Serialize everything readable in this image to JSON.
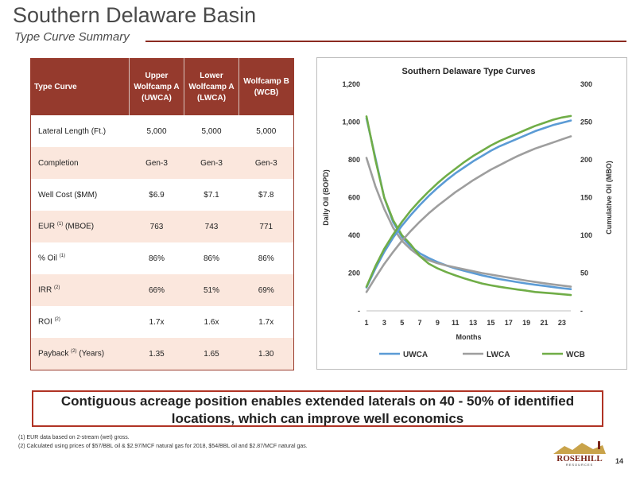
{
  "header": {
    "title": "Southern Delaware Basin",
    "subtitle": "Type Curve Summary"
  },
  "table": {
    "columns": [
      "Type Curve",
      "Upper Wolfcamp A (UWCA)",
      "Lower Wolfcamp A (LWCA)",
      "Wolfcamp B (WCB)"
    ],
    "rows": [
      {
        "label": "Lateral Length (Ft.)",
        "sup": "",
        "suffix": "",
        "values": [
          "5,000",
          "5,000",
          "5,000"
        ]
      },
      {
        "label": "Completion",
        "sup": "",
        "suffix": "",
        "values": [
          "Gen-3",
          "Gen-3",
          "Gen-3"
        ]
      },
      {
        "label": "Well Cost ($MM)",
        "sup": "",
        "suffix": "",
        "values": [
          "$6.9",
          "$7.1",
          "$7.8"
        ]
      },
      {
        "label": "EUR",
        "sup": "(1)",
        "suffix": "(MBOE)",
        "values": [
          "763",
          "743",
          "771"
        ]
      },
      {
        "label": "% Oil",
        "sup": "(1)",
        "suffix": "",
        "values": [
          "86%",
          "86%",
          "86%"
        ]
      },
      {
        "label": "IRR",
        "sup": "(2)",
        "suffix": "",
        "values": [
          "66%",
          "51%",
          "69%"
        ]
      },
      {
        "label": "ROI",
        "sup": "(2)",
        "suffix": "",
        "values": [
          "1.7x",
          "1.6x",
          "1.7x"
        ]
      },
      {
        "label": "Payback",
        "sup": "(2)",
        "suffix": "(Years)",
        "values": [
          "1.35",
          "1.65",
          "1.30"
        ]
      }
    ]
  },
  "chart_data": {
    "type": "line",
    "title": "Southern Delaware Type Curves",
    "xlabel": "Months",
    "ylabel": "Daily Oil (BOPD)",
    "y2label": "Cumulative Oil (MBO)",
    "xlim": [
      1,
      24
    ],
    "ylim": [
      0,
      1200
    ],
    "y2lim": [
      0,
      300
    ],
    "x_ticks": [
      "1",
      "3",
      "5",
      "7",
      "9",
      "11",
      "13",
      "15",
      "17",
      "19",
      "21",
      "23"
    ],
    "y_ticks": [
      "-",
      "200",
      "400",
      "600",
      "800",
      "1,000",
      "1,200"
    ],
    "y2_ticks": [
      "-",
      "50",
      "100",
      "150",
      "200",
      "250",
      "300"
    ],
    "x": [
      1,
      2,
      3,
      4,
      5,
      6,
      7,
      8,
      9,
      10,
      11,
      12,
      13,
      14,
      15,
      16,
      17,
      18,
      19,
      20,
      21,
      22,
      23,
      24
    ],
    "grid": false,
    "legend_position": "bottom",
    "series": [
      {
        "name": "UWCA",
        "axis": "left",
        "color": "#5b9bd5",
        "values": [
          1020,
          810,
          600,
          470,
          390,
          340,
          305,
          280,
          258,
          240,
          225,
          212,
          200,
          188,
          178,
          168,
          160,
          152,
          145,
          138,
          132,
          126,
          120,
          115
        ]
      },
      {
        "name": "LWCA",
        "axis": "left",
        "color": "#9e9e9e",
        "values": [
          810,
          660,
          540,
          440,
          370,
          325,
          290,
          268,
          252,
          240,
          230,
          220,
          210,
          200,
          192,
          184,
          176,
          168,
          160,
          153,
          146,
          140,
          134,
          128
        ]
      },
      {
        "name": "WCB",
        "axis": "left",
        "color": "#70ad47",
        "values": [
          1030,
          800,
          600,
          480,
          400,
          350,
          290,
          250,
          225,
          205,
          188,
          172,
          158,
          145,
          135,
          127,
          120,
          113,
          107,
          100,
          96,
          92,
          88,
          84
        ]
      },
      {
        "name": "",
        "axis": "right",
        "color": "#5b9bd5",
        "values": [
          31,
          56,
          78,
          97,
          113,
          127,
          140,
          152,
          163,
          173,
          182,
          190,
          198,
          205,
          212,
          218,
          223,
          228,
          233,
          238,
          242,
          246,
          249,
          252
        ]
      },
      {
        "name": "",
        "axis": "right",
        "color": "#9e9e9e",
        "values": [
          25,
          44,
          62,
          78,
          93,
          106,
          118,
          129,
          139,
          148,
          157,
          165,
          173,
          180,
          187,
          193,
          199,
          205,
          210,
          215,
          219,
          223,
          227,
          231
        ]
      },
      {
        "name": "",
        "axis": "right",
        "color": "#70ad47",
        "values": [
          32,
          59,
          82,
          101,
          118,
          133,
          146,
          158,
          169,
          179,
          188,
          197,
          205,
          212,
          219,
          225,
          230,
          235,
          240,
          245,
          249,
          253,
          256,
          258
        ]
      }
    ]
  },
  "banner": {
    "text": "Contiguous acreage position enables extended laterals on 40 - 50% of identified locations, which can improve well economics"
  },
  "footnotes": [
    "(1) EUR data based on 2-stream (wet) gross.",
    "(2) Calculated using prices of $57/BBL oil & $2.97/MCF natural gas for 2018, $54/BBL oil and $2.87/MCF natural gas."
  ],
  "logo": {
    "text": "ROSEHILL",
    "subtext": "RESOURCES"
  },
  "page_number": "14"
}
